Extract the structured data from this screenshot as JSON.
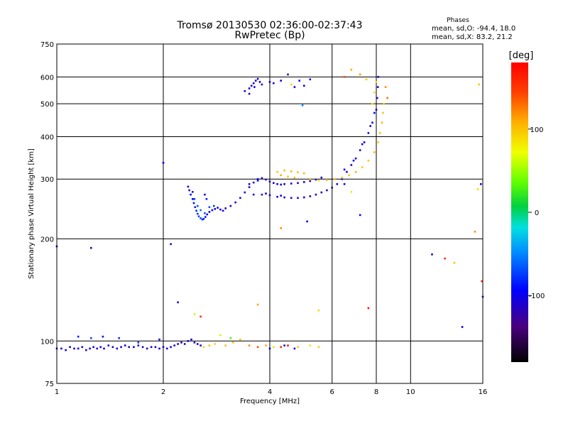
{
  "chart_data": {
    "type": "scatter",
    "title": "Tromsø 20130530 02:36:00-02:37:43",
    "subtitle": "RwPretec (Bp)",
    "xlabel": "Frequency [MHz]",
    "ylabel": "Stationary phase Virtual Height [km]",
    "x_scale": "log",
    "y_scale": "log",
    "xlim": [
      1,
      16
    ],
    "ylim": [
      75,
      750
    ],
    "x_ticks": [
      1,
      2,
      4,
      6,
      8,
      10,
      16
    ],
    "x_tick_labels": [
      "1",
      "2",
      "4",
      "6",
      "8",
      "10",
      "16"
    ],
    "y_ticks": [
      75,
      100,
      200,
      300,
      400,
      500,
      600,
      750
    ],
    "y_tick_labels": [
      "75",
      "100",
      "200",
      "300",
      "400",
      "500",
      "600",
      "750"
    ],
    "grid": true,
    "stats": {
      "heading": "Phases",
      "line1": "mean, sd,O: -94.4, 18.0",
      "line2": "mean, sd,X: 83.2, 21.2"
    },
    "colorbar": {
      "label": "[deg]",
      "range": [
        -180,
        180
      ],
      "ticks": [
        100,
        0,
        -100
      ],
      "tick_labels": [
        "100",
        "0",
        "-100"
      ]
    },
    "series": [
      {
        "values": [
          [
            1.0,
            95,
            -110
          ],
          [
            1.03,
            95,
            -112
          ],
          [
            1.06,
            94,
            -105
          ],
          [
            1.09,
            96,
            -108
          ],
          [
            1.12,
            95,
            -115
          ],
          [
            1.15,
            95,
            -100
          ],
          [
            1.18,
            96,
            -110
          ],
          [
            1.21,
            94,
            -118
          ],
          [
            1.24,
            95,
            -95
          ],
          [
            1.27,
            96,
            -108
          ],
          [
            1.3,
            95,
            -112
          ],
          [
            1.33,
            96,
            -100
          ],
          [
            1.36,
            95,
            -110
          ],
          [
            1.4,
            97,
            -105
          ],
          [
            1.44,
            96,
            -115
          ],
          [
            1.48,
            95,
            -108
          ],
          [
            1.52,
            96,
            -112
          ],
          [
            1.56,
            97,
            -98
          ],
          [
            1.6,
            96,
            -110
          ],
          [
            1.65,
            96,
            -105
          ],
          [
            1.7,
            97,
            -112
          ],
          [
            1.75,
            96,
            -108
          ],
          [
            1.8,
            95,
            -115
          ],
          [
            1.85,
            96,
            -100
          ],
          [
            1.9,
            96,
            -110
          ],
          [
            1.95,
            95,
            -108
          ],
          [
            2.0,
            96,
            -112
          ],
          [
            2.05,
            95,
            -105
          ],
          [
            2.1,
            96,
            -110
          ],
          [
            2.15,
            97,
            -108
          ],
          [
            2.2,
            98,
            -112
          ],
          [
            2.25,
            99,
            -105
          ],
          [
            2.3,
            98,
            -110
          ],
          [
            2.35,
            100,
            -108
          ],
          [
            2.4,
            101,
            -100
          ],
          [
            2.45,
            99,
            -112
          ],
          [
            2.5,
            98,
            -105
          ],
          [
            2.55,
            97,
            -110
          ],
          [
            1.15,
            103,
            -85
          ],
          [
            1.25,
            102,
            -70
          ],
          [
            1.35,
            103,
            -90
          ],
          [
            1.5,
            102,
            -80
          ],
          [
            1.7,
            99,
            -75
          ],
          [
            1.95,
            101,
            -88
          ]
        ]
      },
      {
        "values": [
          [
            2.35,
            285,
            -110
          ],
          [
            2.37,
            278,
            -105
          ],
          [
            2.39,
            270,
            -100
          ],
          [
            2.42,
            262,
            -95
          ],
          [
            2.44,
            255,
            -90
          ],
          [
            2.46,
            248,
            -85
          ],
          [
            2.48,
            242,
            -80
          ],
          [
            2.5,
            237,
            -75
          ],
          [
            2.52,
            233,
            -70
          ],
          [
            2.55,
            230,
            -72
          ],
          [
            2.58,
            228,
            -78
          ],
          [
            2.6,
            229,
            -82
          ],
          [
            2.63,
            232,
            -88
          ],
          [
            2.66,
            236,
            -92
          ],
          [
            2.7,
            240,
            -95
          ],
          [
            2.75,
            243,
            -100
          ],
          [
            2.8,
            245,
            -105
          ],
          [
            2.85,
            247,
            -110
          ],
          [
            2.9,
            244,
            -108
          ],
          [
            2.95,
            242,
            -112
          ],
          [
            2.42,
            275,
            -88
          ],
          [
            2.45,
            262,
            -72
          ],
          [
            2.5,
            250,
            -65
          ],
          [
            2.55,
            243,
            -60
          ],
          [
            2.62,
            238,
            -66
          ],
          [
            2.7,
            248,
            -70
          ],
          [
            2.78,
            250,
            -75
          ],
          [
            2.62,
            270,
            -90
          ],
          [
            2.65,
            262,
            -85
          ]
        ]
      },
      {
        "values": [
          [
            3.0,
            246,
            -110
          ],
          [
            3.1,
            250,
            -112
          ],
          [
            3.2,
            256,
            -108
          ],
          [
            3.3,
            264,
            -110
          ],
          [
            3.4,
            274,
            -115
          ],
          [
            3.5,
            284,
            -112
          ],
          [
            3.6,
            293,
            -110
          ],
          [
            3.7,
            300,
            -105
          ],
          [
            3.8,
            302,
            -110
          ],
          [
            3.9,
            299,
            -112
          ],
          [
            4.0,
            295,
            -108
          ],
          [
            4.1,
            292,
            -110
          ],
          [
            4.2,
            290,
            -115
          ],
          [
            4.3,
            289,
            -110
          ],
          [
            4.4,
            290,
            -108
          ],
          [
            4.6,
            291,
            -112
          ],
          [
            4.8,
            292,
            -110
          ],
          [
            5.0,
            294,
            -105
          ],
          [
            5.2,
            296,
            -110
          ],
          [
            5.4,
            299,
            -108
          ],
          [
            5.6,
            303,
            -110
          ],
          [
            3.5,
            290,
            -100
          ],
          [
            3.7,
            297,
            -95
          ]
        ]
      },
      {
        "values": [
          [
            3.6,
            270,
            -110
          ],
          [
            3.8,
            270,
            -112
          ],
          [
            4.0,
            269,
            -108
          ],
          [
            4.2,
            266,
            -110
          ],
          [
            4.4,
            265,
            -112
          ],
          [
            4.6,
            264,
            -110
          ],
          [
            4.8,
            264,
            -108
          ],
          [
            5.0,
            265,
            -110
          ],
          [
            5.2,
            267,
            -112
          ],
          [
            5.4,
            270,
            -108
          ],
          [
            5.6,
            274,
            -110
          ],
          [
            5.8,
            278,
            -105
          ],
          [
            6.0,
            283,
            -110
          ],
          [
            6.2,
            290,
            -112
          ],
          [
            6.4,
            300,
            -108
          ],
          [
            6.6,
            315,
            -110
          ],
          [
            6.8,
            330,
            -112
          ],
          [
            7.0,
            345,
            -108
          ],
          [
            7.2,
            365,
            -110
          ],
          [
            7.4,
            385,
            -112
          ],
          [
            7.6,
            410,
            -108
          ],
          [
            7.8,
            440,
            -110
          ],
          [
            8.0,
            480,
            -105
          ],
          [
            8.05,
            520,
            -108
          ],
          [
            8.08,
            560,
            -110
          ],
          [
            8.1,
            600,
            -112
          ],
          [
            6.5,
            320,
            -95
          ],
          [
            6.9,
            340,
            -100
          ],
          [
            7.3,
            380,
            -98
          ],
          [
            7.7,
            430,
            -100
          ],
          [
            7.9,
            470,
            -95
          ],
          [
            3.9,
            272,
            -100
          ],
          [
            4.3,
            268,
            -95
          ]
        ]
      },
      {
        "values": [
          [
            4.2,
            315,
            95
          ],
          [
            4.4,
            318,
            100
          ],
          [
            4.6,
            316,
            105
          ],
          [
            4.8,
            314,
            98
          ],
          [
            5.0,
            312,
            102
          ],
          [
            4.3,
            308,
            110
          ],
          [
            4.5,
            305,
            95
          ],
          [
            4.7,
            303,
            100
          ],
          [
            5.2,
            300,
            105
          ],
          [
            5.5,
            297,
            90
          ],
          [
            5.8,
            298,
            100
          ],
          [
            6.1,
            300,
            105
          ],
          [
            6.4,
            303,
            95
          ],
          [
            6.7,
            308,
            100
          ],
          [
            7.0,
            315,
            110
          ],
          [
            7.3,
            325,
            95
          ],
          [
            7.6,
            340,
            100
          ],
          [
            7.9,
            360,
            105
          ],
          [
            8.1,
            385,
            95
          ],
          [
            8.2,
            410,
            100
          ],
          [
            8.3,
            440,
            105
          ],
          [
            8.35,
            470,
            100
          ],
          [
            8.4,
            500,
            95
          ],
          [
            7.8,
            500,
            80
          ],
          [
            7.9,
            540,
            90
          ],
          [
            8.0,
            580,
            85
          ],
          [
            6.8,
            630,
            110
          ],
          [
            7.2,
            610,
            115
          ],
          [
            6.5,
            600,
            140
          ],
          [
            8.5,
            560,
            120
          ],
          [
            8.6,
            520,
            130
          ],
          [
            7.5,
            590,
            100
          ]
        ]
      },
      {
        "values": [
          [
            3.4,
            545,
            -110
          ],
          [
            3.5,
            555,
            -105
          ],
          [
            3.55,
            565,
            -112
          ],
          [
            3.6,
            575,
            -108
          ],
          [
            3.65,
            585,
            -110
          ],
          [
            3.7,
            592,
            -115
          ],
          [
            3.75,
            580,
            -100
          ],
          [
            3.8,
            570,
            -112
          ],
          [
            3.5,
            535,
            -118
          ],
          [
            3.62,
            560,
            -90
          ],
          [
            4.0,
            580,
            -100
          ],
          [
            4.1,
            575,
            -110
          ],
          [
            4.3,
            585,
            -95
          ],
          [
            4.5,
            610,
            -120
          ],
          [
            4.7,
            560,
            -105
          ],
          [
            4.85,
            585,
            -100
          ],
          [
            5.0,
            565,
            -95
          ],
          [
            5.2,
            590,
            -110
          ],
          [
            4.6,
            570,
            90
          ],
          [
            4.95,
            495,
            -50
          ]
        ]
      },
      {
        "values": [
          [
            2.6,
            96,
            95
          ],
          [
            2.7,
            97,
            100
          ],
          [
            2.8,
            98,
            90
          ],
          [
            3.0,
            97,
            105
          ],
          [
            3.15,
            99,
            100
          ],
          [
            3.3,
            101,
            95
          ],
          [
            3.5,
            97,
            120
          ],
          [
            3.7,
            96,
            140
          ],
          [
            3.9,
            97,
            110
          ],
          [
            4.1,
            96,
            90
          ],
          [
            4.3,
            96,
            160
          ],
          [
            4.5,
            97,
            170
          ],
          [
            4.8,
            96,
            100
          ],
          [
            5.2,
            97,
            80
          ],
          [
            5.5,
            96,
            95
          ],
          [
            4.0,
            95,
            -100
          ],
          [
            4.4,
            97,
            -110
          ],
          [
            4.7,
            95,
            -95
          ],
          [
            2.9,
            104,
            60
          ],
          [
            3.1,
            102,
            30
          ]
        ]
      },
      {
        "values": [
          [
            1.0,
            190,
            -100
          ],
          [
            1.25,
            188,
            -110
          ],
          [
            2.1,
            193,
            -120
          ],
          [
            2.0,
            335,
            -105
          ],
          [
            2.2,
            130,
            -90
          ],
          [
            2.45,
            120,
            60
          ],
          [
            2.55,
            118,
            150
          ],
          [
            3.7,
            128,
            110
          ],
          [
            5.5,
            123,
            90
          ],
          [
            6.5,
            290,
            -105
          ],
          [
            6.8,
            275,
            80
          ],
          [
            7.2,
            235,
            -100
          ],
          [
            7.6,
            125,
            170
          ],
          [
            11.5,
            180,
            -110
          ],
          [
            12.5,
            175,
            160
          ],
          [
            13.3,
            170,
            100
          ],
          [
            14.0,
            110,
            -100
          ],
          [
            15.2,
            210,
            120
          ],
          [
            15.5,
            280,
            90
          ],
          [
            15.8,
            290,
            -110
          ],
          [
            15.9,
            150,
            160
          ],
          [
            16.0,
            135,
            -110
          ],
          [
            15.6,
            570,
            100
          ],
          [
            4.3,
            215,
            120
          ],
          [
            5.1,
            225,
            -100
          ]
        ]
      }
    ]
  }
}
